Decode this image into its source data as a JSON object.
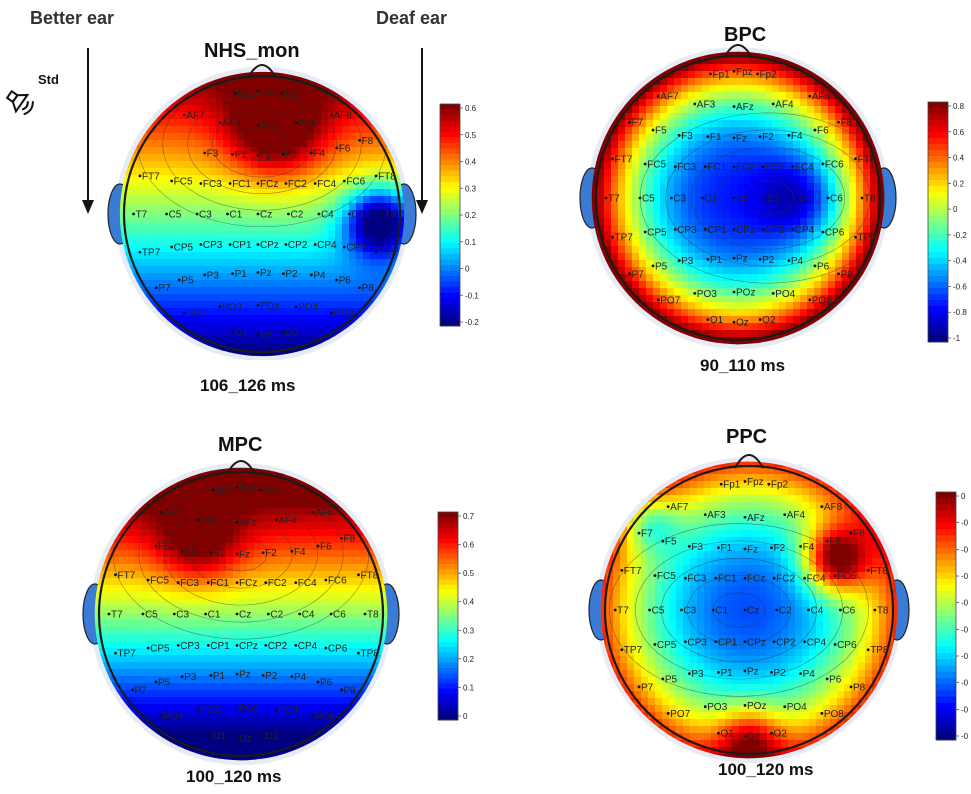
{
  "annotations": {
    "better_ear": "Better ear",
    "deaf_ear": "Deaf ear",
    "std": "Std",
    "colors": {
      "arrow": "#111111",
      "head_outline": "#1a1a1a"
    }
  },
  "panels": [
    {
      "id": "nhs",
      "title": "NHS_mon",
      "time": "106_126 ms",
      "colorbar_ticks": [
        "0.6",
        "0.5",
        "0.4",
        "0.3",
        "0.2",
        "0.1",
        "0",
        "-0.1",
        "-0.2"
      ],
      "pattern": "frontal_red_right_blue",
      "electrodes": [
        "AF7",
        "Fp1",
        "Fpz",
        "Fp2",
        "AF3",
        "AFz",
        "AF4",
        "AF8",
        "F6",
        "F3",
        "F1",
        "Fz",
        "F2",
        "F4",
        "F8",
        "FT7",
        "FC5",
        "FC3",
        "FC1",
        "FCz",
        "FC2",
        "FC4",
        "FC6",
        "FT8",
        "T7",
        "C5",
        "C3",
        "C1",
        "Cz",
        "C2",
        "C4",
        "C6",
        "T8",
        "TP7",
        "CP5",
        "CP3",
        "CP1",
        "CPz",
        "CP2",
        "CP4",
        "CP6",
        "TP8",
        "P7",
        "P5",
        "P3",
        "P1",
        "Pz",
        "P2",
        "P4",
        "P6",
        "P8",
        "PO7",
        "PO3",
        "POz",
        "PO4",
        "PO8",
        "O1",
        "Oz",
        "O2"
      ]
    },
    {
      "id": "bpc",
      "title": "BPC",
      "time": "90_110 ms",
      "colorbar_ticks": [
        "0.8",
        "0.6",
        "0.4",
        "0.2",
        "0",
        "-0.2",
        "-0.4",
        "-0.6",
        "-0.8",
        "-1"
      ],
      "pattern": "rim_red_center_blue",
      "electrodes": [
        "AF7",
        "Fp1",
        "Fpz",
        "Fp2",
        "AF3",
        "AFz",
        "AF4",
        "AF8",
        "F7",
        "F5",
        "F3",
        "F1",
        "Fz",
        "F2",
        "F4",
        "F6",
        "F8",
        "FT7",
        "FC5",
        "FC3",
        "FC1",
        "FCz",
        "FC2",
        "FC4",
        "FC6",
        "FT8",
        "T7",
        "C5",
        "C3",
        "C1",
        "Cz",
        "C2",
        "C4",
        "C6",
        "T8",
        "TP7",
        "CP5",
        "CP3",
        "CP1",
        "CPz",
        "CP2",
        "CP4",
        "CP6",
        "TP8",
        "P7",
        "P5",
        "P3",
        "P1",
        "Pz",
        "P2",
        "P4",
        "P6",
        "P8",
        "PO7",
        "PO3",
        "POz",
        "PO4",
        "PO8",
        "O1",
        "Oz",
        "O2"
      ]
    },
    {
      "id": "mpc",
      "title": "MPC",
      "time": "100_120 ms",
      "colorbar_ticks": [
        "0.7",
        "0.6",
        "0.5",
        "0.4",
        "0.3",
        "0.2",
        "0.1",
        "0"
      ],
      "pattern": "frontal_red_posterior_blue",
      "electrodes": [
        "AF7",
        "Fp1",
        "Fpz",
        "Fp2",
        "AF3",
        "AFz",
        "AF4",
        "AF8",
        "F5",
        "F3",
        "F1",
        "Fz",
        "F2",
        "F4",
        "F6",
        "F8",
        "FT7",
        "FC5",
        "FC3",
        "FC1",
        "FCz",
        "FC2",
        "FC4",
        "FC6",
        "FT8",
        "T7",
        "C5",
        "C3",
        "C1",
        "Cz",
        "C2",
        "C4",
        "C6",
        "T8",
        "TP7",
        "CP5",
        "CP3",
        "CP1",
        "CPz",
        "CP2",
        "CP4",
        "CP6",
        "TP8",
        "P7",
        "P5",
        "P3",
        "P1",
        "Pz",
        "P2",
        "P4",
        "P6",
        "P8",
        "PO7",
        "PO3",
        "POz",
        "PO4",
        "PO8",
        "O1",
        "Oz",
        "O2"
      ]
    },
    {
      "id": "ppc",
      "title": "PPC",
      "time": "100_120 ms",
      "colorbar_ticks": [
        "0",
        "-0",
        "-0",
        "-0",
        "-0",
        "-0",
        "-0",
        "-0",
        "-0",
        "-0"
      ],
      "pattern": "right_frontal_red_center_blue",
      "electrodes": [
        "AF7",
        "Fp1",
        "Fpz",
        "Fp2",
        "AF3",
        "AFz",
        "AF4",
        "AF8",
        "F7",
        "F5",
        "F3",
        "F1",
        "Fz",
        "F2",
        "F4",
        "F6",
        "F8",
        "FT7",
        "FC5",
        "FC3",
        "FC1",
        "FCz",
        "FC2",
        "FC4",
        "FC6",
        "FT8",
        "T7",
        "C5",
        "C3",
        "C1",
        "Cz",
        "C2",
        "C4",
        "C6",
        "T8",
        "TP7",
        "CP5",
        "CP3",
        "CP1",
        "CPz",
        "CP2",
        "CP4",
        "CP6",
        "TP8",
        "P7",
        "P5",
        "P3",
        "P1",
        "Pz",
        "P2",
        "P4",
        "P6",
        "P8",
        "PO7",
        "PO3",
        "POz",
        "PO4",
        "PO8",
        "O1",
        "Oz",
        "O2"
      ]
    }
  ]
}
